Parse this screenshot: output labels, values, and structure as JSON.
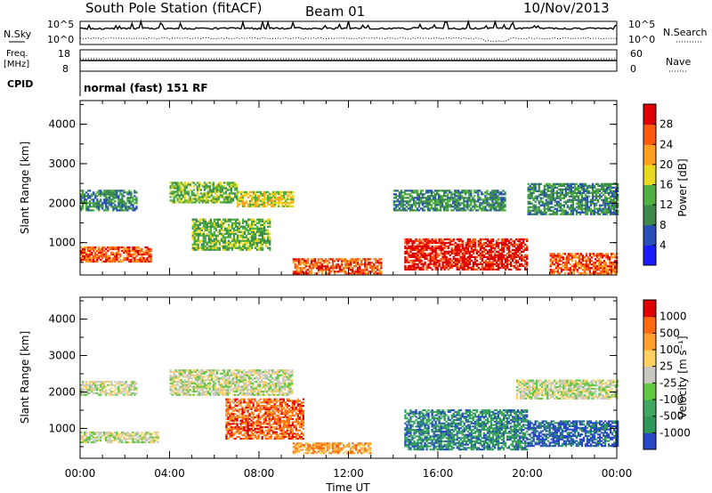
{
  "header": {
    "station": "South Pole Station (fitACF)",
    "beam": "Beam 01",
    "date": "10/Nov/2013"
  },
  "top_panels": {
    "nsky_label": "N.Sky",
    "nsky_ticks": [
      "10^5",
      "10^0"
    ],
    "nsearch_label": "N.Search",
    "nsearch_ticks": [
      "10^5",
      "10^0"
    ],
    "freq_label_1": "Freq.",
    "freq_label_2": "[MHz]",
    "freq_ticks": [
      "18",
      "8"
    ],
    "nave_label": "Nave",
    "nave_ticks": [
      "60",
      "0"
    ],
    "cpid_label": "CPID",
    "cpid_text": "normal (fast) 151 RF"
  },
  "chart_data": [
    {
      "type": "heatmap",
      "name": "power",
      "ylabel": "Slant Range [km]",
      "yticks": [
        "1000",
        "2000",
        "3000",
        "4000"
      ],
      "ylim": [
        180,
        4600
      ],
      "xlabel": "Time UT",
      "xticks": [
        "00:00",
        "04:00",
        "08:00",
        "12:00",
        "16:00",
        "20:00",
        "00:00"
      ],
      "xlim_hours": [
        0,
        24
      ],
      "colorbar": {
        "label": "Power [dB]",
        "ticks": [
          "4",
          "8",
          "12",
          "16",
          "20",
          "24",
          "28"
        ],
        "colors": [
          "#1a1aff",
          "#2850b8",
          "#3c8a4a",
          "#50b040",
          "#e8d820",
          "#ffa020",
          "#ff5a10",
          "#e00000"
        ]
      },
      "echo_bands": [
        {
          "t0": 0.0,
          "t1": 3.2,
          "r0": 500,
          "r1": 900,
          "level": 6
        },
        {
          "t0": 0.0,
          "t1": 2.5,
          "r0": 1800,
          "r1": 2300,
          "level": 2
        },
        {
          "t0": 4.0,
          "t1": 7.0,
          "r0": 2000,
          "r1": 2500,
          "level": 3
        },
        {
          "t0": 7.0,
          "t1": 9.5,
          "r0": 1900,
          "r1": 2300,
          "level": 4
        },
        {
          "t0": 5.0,
          "t1": 8.5,
          "r0": 800,
          "r1": 1600,
          "level": 3
        },
        {
          "t0": 9.5,
          "t1": 13.5,
          "r0": 200,
          "r1": 600,
          "level": 6
        },
        {
          "t0": 14.5,
          "t1": 20.0,
          "r0": 300,
          "r1": 1100,
          "level": 7
        },
        {
          "t0": 14.0,
          "t1": 19.0,
          "r0": 1800,
          "r1": 2300,
          "level": 2
        },
        {
          "t0": 21.0,
          "t1": 24.0,
          "r0": 200,
          "r1": 700,
          "level": 6
        },
        {
          "t0": 20.0,
          "t1": 24.0,
          "r0": 1700,
          "r1": 2500,
          "level": 2
        }
      ]
    },
    {
      "type": "heatmap",
      "name": "velocity",
      "ylabel": "Slant Range [km]",
      "yticks": [
        "1000",
        "2000",
        "3000",
        "4000"
      ],
      "ylim": [
        180,
        4600
      ],
      "xlabel": "Time UT",
      "xticks": [
        "00:00",
        "04:00",
        "08:00",
        "12:00",
        "16:00",
        "20:00",
        "00:00"
      ],
      "xlim_hours": [
        0,
        24
      ],
      "colorbar": {
        "label": "Velocity [m s⁻¹]",
        "ticks": [
          "1000",
          "500",
          "100",
          "25",
          "-25",
          "-100",
          "-500",
          "-1000"
        ],
        "colors": [
          "#2848c8",
          "#2e9858",
          "#40a860",
          "#60c840",
          "#c8c8c0",
          "#ffd060",
          "#ffa030",
          "#ff6a10",
          "#e00000"
        ]
      },
      "echo_bands": [
        {
          "t0": 0.0,
          "t1": 3.5,
          "r0": 600,
          "r1": 900,
          "level": 4
        },
        {
          "t0": 0.0,
          "t1": 2.5,
          "r0": 1900,
          "r1": 2300,
          "level": 4
        },
        {
          "t0": 4.0,
          "t1": 9.5,
          "r0": 1900,
          "r1": 2600,
          "level": 4
        },
        {
          "t0": 6.5,
          "t1": 10.0,
          "r0": 700,
          "r1": 1800,
          "level": 7
        },
        {
          "t0": 9.5,
          "t1": 13.0,
          "r0": 300,
          "r1": 600,
          "level": 6
        },
        {
          "t0": 14.5,
          "t1": 20.0,
          "r0": 400,
          "r1": 1500,
          "level": 1
        },
        {
          "t0": 20.0,
          "t1": 24.0,
          "r0": 500,
          "r1": 1200,
          "level": 0
        },
        {
          "t0": 19.5,
          "t1": 24.0,
          "r0": 1800,
          "r1": 2300,
          "level": 4
        }
      ]
    }
  ]
}
